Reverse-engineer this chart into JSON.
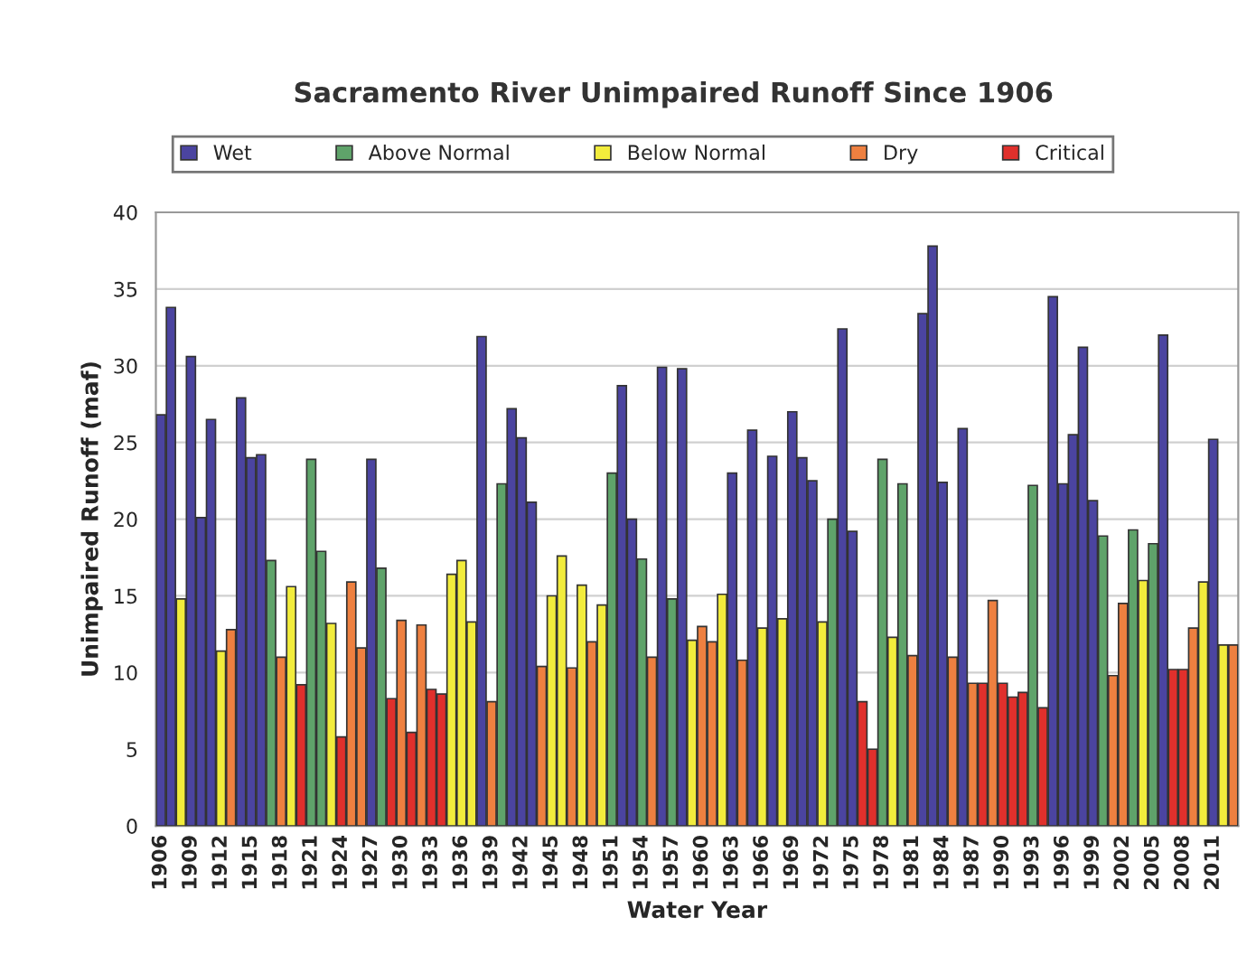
{
  "chart_data": {
    "type": "bar",
    "title": "Sacramento River Unimpaired Runoff Since 1906",
    "xlabel": "Water Year",
    "ylabel": "Unimpaired Runoff (maf)",
    "series": [
      {
        "name": "Wet",
        "color": "#4b44a0",
        "x": [
          1906,
          1907,
          1909,
          1910,
          1911,
          1914,
          1915,
          1916,
          1927,
          1938,
          1941,
          1942,
          1943,
          1952,
          1953,
          1956,
          1958,
          1963,
          1965,
          1967,
          1969,
          1970,
          1971,
          1974,
          1975,
          1982,
          1983,
          1984,
          1986,
          1995,
          1996,
          1997,
          1998,
          1999,
          2006,
          2011
        ],
        "values": [
          26.8,
          33.8,
          30.6,
          20.1,
          26.5,
          27.9,
          24.0,
          24.2,
          23.9,
          31.9,
          27.2,
          25.3,
          21.1,
          28.7,
          20.0,
          29.9,
          29.8,
          23.0,
          25.8,
          24.1,
          27.0,
          24.0,
          22.5,
          32.4,
          19.2,
          33.4,
          37.8,
          22.4,
          25.9,
          34.5,
          22.3,
          25.5,
          31.2,
          21.2,
          32.0,
          25.2
        ]
      },
      {
        "name": "Above Normal",
        "color": "#5fa36a",
        "x": [
          1917,
          1921,
          1922,
          1928,
          1940,
          1951,
          1954,
          1957,
          1973,
          1978,
          1980,
          1993,
          2000,
          2003,
          2005
        ],
        "values": [
          17.3,
          23.9,
          17.9,
          16.8,
          22.3,
          23.0,
          17.4,
          14.8,
          20.0,
          23.9,
          22.3,
          22.2,
          18.9,
          19.3,
          18.4
        ]
      },
      {
        "name": "Below Normal",
        "color": "#f2ec3c",
        "x": [
          1908,
          1912,
          1919,
          1923,
          1935,
          1936,
          1937,
          1945,
          1946,
          1948,
          1950,
          1959,
          1962,
          1966,
          1968,
          1972,
          1979,
          2004,
          2010,
          2012
        ],
        "values": [
          14.8,
          11.4,
          15.6,
          13.2,
          16.4,
          17.3,
          13.3,
          15.0,
          17.6,
          15.7,
          14.4,
          12.1,
          15.1,
          12.9,
          13.5,
          13.3,
          12.3,
          16.0,
          15.9,
          11.8
        ]
      },
      {
        "name": "Dry",
        "color": "#ee8040",
        "x": [
          1913,
          1918,
          1925,
          1926,
          1930,
          1932,
          1939,
          1944,
          1947,
          1949,
          1955,
          1960,
          1961,
          1964,
          1981,
          1985,
          1987,
          1989,
          2001,
          2002,
          2009,
          2013
        ],
        "values": [
          12.8,
          11.0,
          15.9,
          11.6,
          13.4,
          13.1,
          8.1,
          10.4,
          10.3,
          12.0,
          11.0,
          13.0,
          12.0,
          10.8,
          11.1,
          11.0,
          9.3,
          14.7,
          9.8,
          14.5,
          12.9,
          11.8
        ]
      },
      {
        "name": "Critical",
        "color": "#e0302c",
        "x": [
          1920,
          1924,
          1929,
          1931,
          1933,
          1934,
          1976,
          1977,
          1988,
          1990,
          1991,
          1992,
          1994,
          2007,
          2008
        ],
        "values": [
          9.2,
          5.8,
          8.3,
          6.1,
          8.9,
          8.6,
          8.1,
          5.0,
          9.3,
          9.3,
          8.4,
          8.7,
          7.7,
          10.2,
          10.2
        ]
      }
    ],
    "xlim": [
      1905.5,
      2013.5
    ],
    "xticks": [
      1906,
      1909,
      1912,
      1915,
      1918,
      1921,
      1924,
      1927,
      1930,
      1933,
      1936,
      1939,
      1942,
      1945,
      1948,
      1951,
      1954,
      1957,
      1960,
      1963,
      1966,
      1969,
      1972,
      1975,
      1978,
      1981,
      1984,
      1987,
      1990,
      1993,
      1996,
      1999,
      2002,
      2005,
      2008,
      2011
    ],
    "ylim": [
      0,
      40
    ],
    "yticks": [
      0,
      5,
      10,
      15,
      20,
      25,
      30,
      35,
      40
    ],
    "grid": "y",
    "legend": "top"
  }
}
